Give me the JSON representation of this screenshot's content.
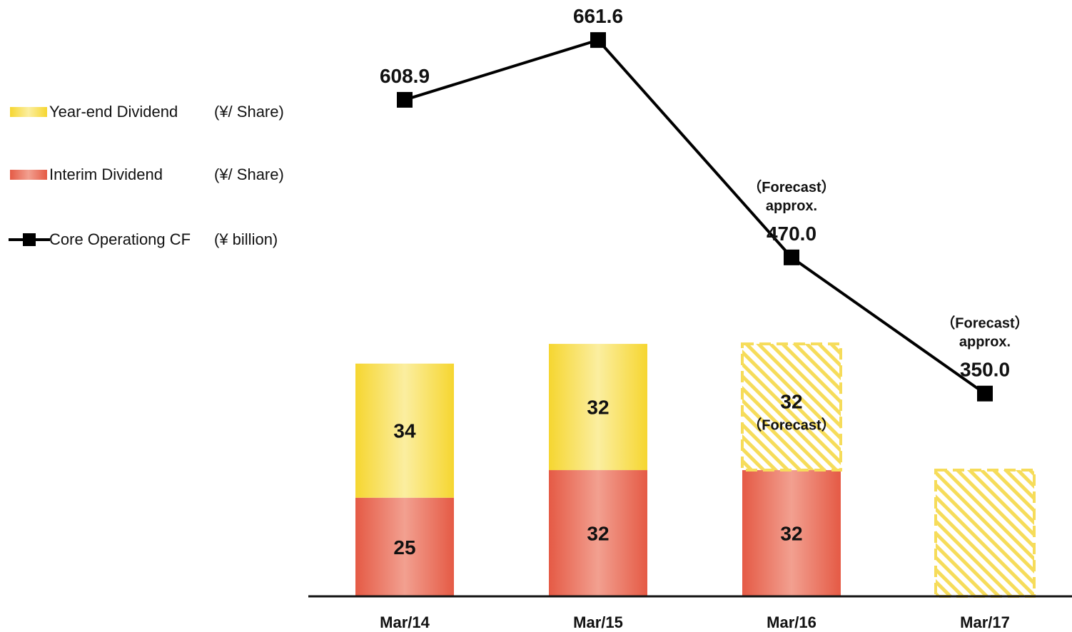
{
  "chart_data": {
    "type": "bar",
    "categories": [
      "Mar/14",
      "Mar/15",
      "Mar/16",
      "Mar/17"
    ],
    "series": [
      {
        "name": "Interim Dividend",
        "unit": "(¥/ Share)",
        "values": [
          25,
          32,
          32,
          null
        ],
        "forecast": [
          false,
          false,
          false,
          false
        ],
        "notes": [
          "",
          "",
          "",
          ""
        ],
        "color": "#e8604c"
      },
      {
        "name": "Year-end Dividend",
        "unit": "(¥/ Share)",
        "values": [
          34,
          32,
          32,
          32
        ],
        "forecast": [
          false,
          false,
          true,
          true
        ],
        "show_value": [
          true,
          true,
          true,
          false
        ],
        "notes": [
          "",
          "",
          "（Forecast）",
          ""
        ],
        "color": "#f7dd3c"
      },
      {
        "name": "Core Operationg CF",
        "unit": "(¥ billion)",
        "type": "line",
        "values": [
          608.9,
          661.6,
          470.0,
          350.0
        ],
        "value_labels": [
          "608.9",
          "661.6",
          "470.0",
          "350.0"
        ],
        "notes": [
          [
            "",
            ""
          ],
          [
            "",
            ""
          ],
          [
            "（Forecast）",
            "approx."
          ],
          [
            "（Forecast）",
            "approx."
          ]
        ],
        "color": "#000000"
      }
    ],
    "legend_position": "left",
    "grid": false
  }
}
